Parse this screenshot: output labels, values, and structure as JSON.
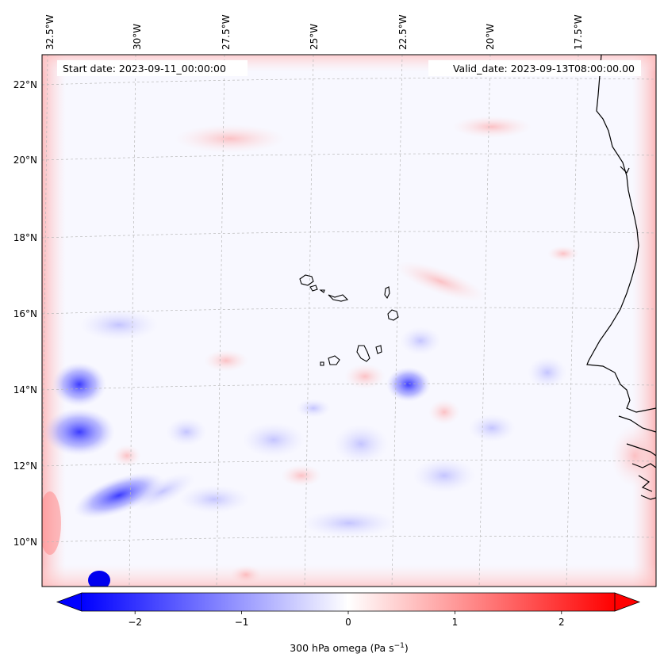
{
  "header": {
    "start_date": "Start date: 2023-09-11_00:00:00",
    "valid_date": "Valid_date: 2023-09-13T08:00:00.00"
  },
  "lon_labels": [
    "32.5°W",
    "30°W",
    "27.5°W",
    "25°W",
    "22.5°W",
    "20°W",
    "17.5°W"
  ],
  "lat_labels": [
    "22°N",
    "20°N",
    "18°N",
    "16°N",
    "14°N",
    "12°N",
    "10°N"
  ],
  "colorbar": {
    "ticks": [
      "−2",
      "−1",
      "0",
      "1",
      "2"
    ],
    "tick_values": [
      -2,
      -1,
      0,
      1,
      2
    ],
    "range": [
      -2.5,
      2.5
    ],
    "label_main": "300 hPa omega (Pa s",
    "label_sup": "−1",
    "label_close": ")",
    "color_neg": "#0000ff",
    "color_zero": "#ffffff",
    "color_pos": "#ff0000"
  }
}
